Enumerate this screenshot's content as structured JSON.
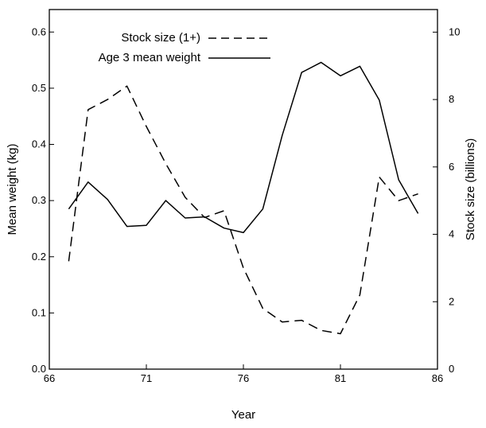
{
  "chart_data": {
    "type": "line",
    "title": "",
    "xlabel": "Year",
    "ylabel_left": "Mean weight (kg)",
    "ylabel_right": "Stock size (billions)",
    "xlim": [
      66,
      86
    ],
    "ylim_left": [
      0.0,
      0.64
    ],
    "ylim_right": [
      0,
      10.67
    ],
    "x_ticks": [
      66,
      71,
      76,
      81,
      86
    ],
    "y_ticks_left": [
      0.0,
      0.1,
      0.2,
      0.3,
      0.4,
      0.5,
      0.6
    ],
    "y_ticks_right": [
      0,
      2,
      4,
      6,
      8,
      10
    ],
    "grid": false,
    "legend_position": "top-center",
    "series": [
      {
        "name": "Stock size (1+)",
        "axis": "right",
        "style": "dashed",
        "color": "#000000",
        "x": [
          67,
          68,
          69,
          70,
          71,
          72,
          73,
          74,
          75,
          76,
          77,
          78,
          79,
          80,
          81,
          82,
          83,
          84,
          85
        ],
        "y": [
          3.2,
          7.7,
          8.0,
          8.4,
          7.2,
          6.1,
          5.1,
          4.5,
          4.7,
          3.0,
          1.8,
          1.4,
          1.45,
          1.15,
          1.05,
          2.2,
          5.7,
          5.0,
          5.2
        ]
      },
      {
        "name": "Age 3 mean weight",
        "axis": "left",
        "style": "solid",
        "color": "#000000",
        "x": [
          67,
          68,
          69,
          70,
          71,
          72,
          73,
          74,
          75,
          76,
          77,
          78,
          79,
          80,
          81,
          82,
          83,
          84,
          85
        ],
        "y": [
          0.285,
          0.333,
          0.302,
          0.254,
          0.256,
          0.3,
          0.269,
          0.271,
          0.251,
          0.243,
          0.285,
          0.416,
          0.528,
          0.546,
          0.522,
          0.539,
          0.479,
          0.337,
          0.277
        ]
      }
    ]
  }
}
